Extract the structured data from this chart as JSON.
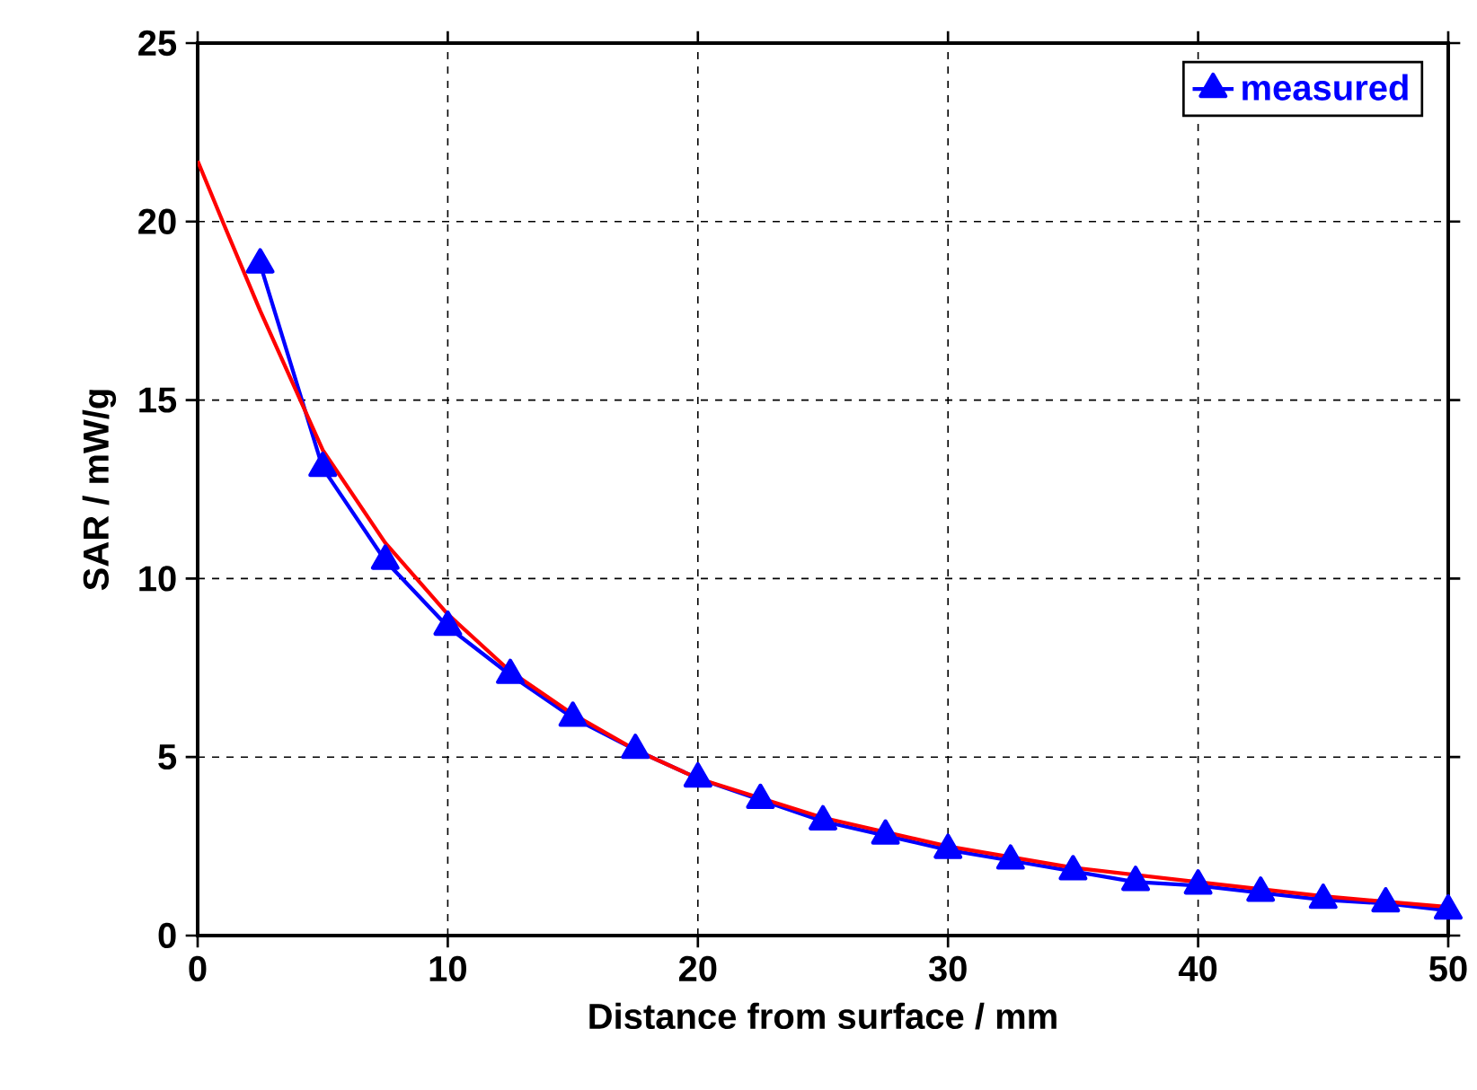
{
  "chart_data": {
    "type": "line",
    "xlabel": "Distance from surface / mm",
    "ylabel": "SAR / mW/g",
    "xlim": [
      0,
      50
    ],
    "ylim": [
      0,
      25
    ],
    "xticks": [
      0,
      10,
      20,
      30,
      40,
      50
    ],
    "yticks": [
      0,
      5,
      10,
      15,
      20,
      25
    ],
    "grid": true,
    "legend": "top right",
    "series": [
      {
        "color": "#ff0000",
        "marker": "none",
        "x": [
          0,
          1,
          2.5,
          5,
          7.5,
          10,
          12.5,
          15,
          17.5,
          20,
          25,
          30,
          35,
          40,
          45,
          50
        ],
        "values": [
          21.7,
          20,
          17.5,
          13.6,
          11.0,
          9.0,
          7.4,
          6.2,
          5.2,
          4.4,
          3.3,
          2.5,
          1.9,
          1.5,
          1.1,
          0.8
        ]
      },
      {
        "name": "measured",
        "color": "#0000ff",
        "marker": "triangle",
        "x": [
          2.5,
          5,
          7.5,
          10,
          12.5,
          15,
          17.5,
          20,
          22.5,
          25,
          27.5,
          30,
          32.5,
          35,
          37.5,
          40,
          42.5,
          45,
          47.5,
          50
        ],
        "values": [
          18.8,
          13.1,
          10.5,
          8.65,
          7.3,
          6.1,
          5.2,
          4.4,
          3.8,
          3.2,
          2.8,
          2.4,
          2.1,
          1.8,
          1.5,
          1.4,
          1.2,
          1.0,
          0.9,
          0.7
        ]
      }
    ]
  }
}
